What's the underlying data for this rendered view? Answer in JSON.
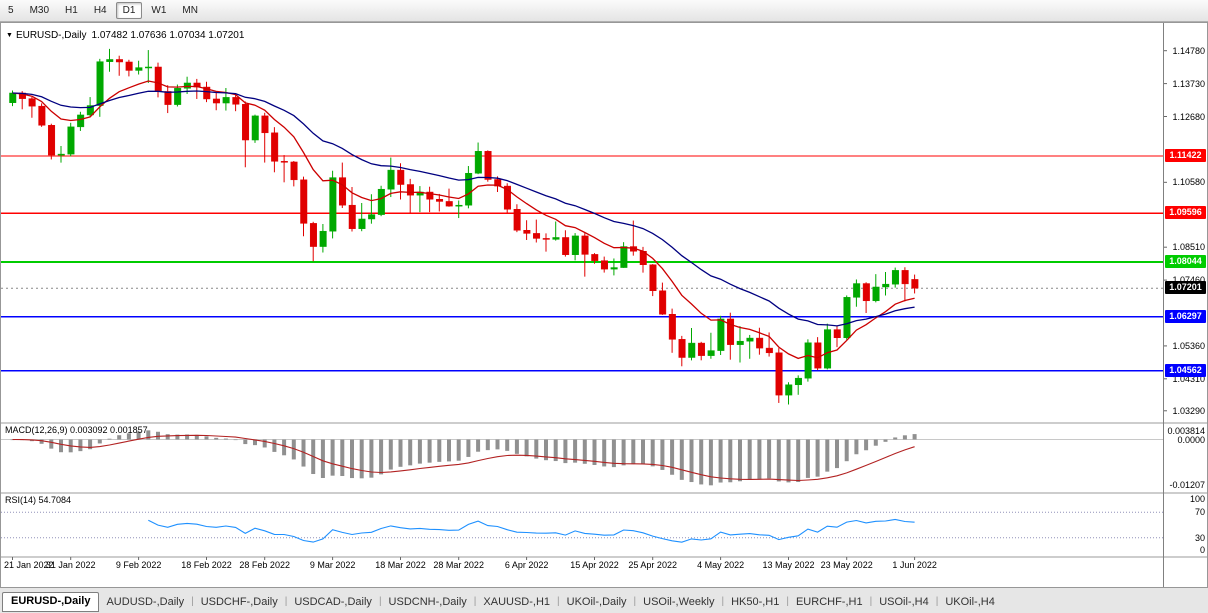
{
  "toolbar": {
    "timeframes": [
      "5",
      "M30",
      "H1",
      "H4",
      "D1",
      "W1",
      "MN"
    ],
    "active": "D1"
  },
  "chart_data": {
    "type": "candlestick",
    "symbol": "EURUSD-,Daily",
    "ohlc": "1.07482 1.07636 1.07034 1.07201",
    "price_range": [
      1.029,
      1.156
    ],
    "price_ticks": [
      "1.14780",
      "1.13730",
      "1.12680",
      "1.10580",
      "1.08510",
      "1.07460",
      "1.05360",
      "1.04310",
      "1.03290"
    ],
    "x_tick_labels": [
      "21 Jan 2022",
      "31 Jan 2022",
      "9 Feb 2022",
      "18 Feb 2022",
      "28 Feb 2022",
      "9 Mar 2022",
      "18 Mar 2022",
      "28 Mar 2022",
      "6 Apr 2022",
      "15 Apr 2022",
      "25 Apr 2022",
      "4 May 2022",
      "13 May 2022",
      "23 May 2022",
      "1 Jun 2022"
    ],
    "x_tick_indices": [
      0,
      6,
      13,
      20,
      26,
      33,
      40,
      46,
      53,
      60,
      66,
      73,
      80,
      86,
      93
    ],
    "colors": {
      "up": "#00a800",
      "down": "#e00000",
      "background": "#ffffff"
    },
    "candles": [
      [
        1.1312,
        1.1351,
        1.1301,
        1.1343
      ],
      [
        1.1343,
        1.1349,
        1.1291,
        1.1325
      ],
      [
        1.1325,
        1.133,
        1.1264,
        1.1301
      ],
      [
        1.1301,
        1.131,
        1.1235,
        1.124
      ],
      [
        1.124,
        1.1245,
        1.1131,
        1.1145
      ],
      [
        1.1145,
        1.1174,
        1.1121,
        1.1148
      ],
      [
        1.1148,
        1.1248,
        1.1141,
        1.1235
      ],
      [
        1.1235,
        1.1283,
        1.1222,
        1.1273
      ],
      [
        1.1273,
        1.133,
        1.1265,
        1.1303
      ],
      [
        1.1303,
        1.1452,
        1.1267,
        1.1443
      ],
      [
        1.1443,
        1.1484,
        1.1411,
        1.145
      ],
      [
        1.145,
        1.1462,
        1.1398,
        1.1442
      ],
      [
        1.1442,
        1.1449,
        1.1396,
        1.1415
      ],
      [
        1.1415,
        1.1446,
        1.1402,
        1.1424
      ],
      [
        1.1424,
        1.148,
        1.1375,
        1.1426
      ],
      [
        1.1426,
        1.144,
        1.1329,
        1.1348
      ],
      [
        1.1348,
        1.1368,
        1.1279,
        1.1306
      ],
      [
        1.1306,
        1.137,
        1.13,
        1.1358
      ],
      [
        1.1358,
        1.1395,
        1.134,
        1.1375
      ],
      [
        1.1375,
        1.1388,
        1.1324,
        1.1362
      ],
      [
        1.1362,
        1.1379,
        1.1314,
        1.1324
      ],
      [
        1.1324,
        1.1347,
        1.1288,
        1.1311
      ],
      [
        1.1311,
        1.1359,
        1.1287,
        1.1329
      ],
      [
        1.1329,
        1.1342,
        1.1285,
        1.1307
      ],
      [
        1.1307,
        1.1316,
        1.1106,
        1.1193
      ],
      [
        1.1193,
        1.1274,
        1.1184,
        1.127
      ],
      [
        1.127,
        1.128,
        1.1121,
        1.1216
      ],
      [
        1.1216,
        1.1234,
        1.109,
        1.1125
      ],
      [
        1.1125,
        1.1145,
        1.1058,
        1.1123
      ],
      [
        1.1123,
        1.1126,
        1.1045,
        1.1066
      ],
      [
        1.1066,
        1.1076,
        1.0886,
        1.0927
      ],
      [
        1.0927,
        1.0932,
        1.0806,
        1.0853
      ],
      [
        1.0853,
        1.0925,
        1.0834,
        1.0902
      ],
      [
        1.0902,
        1.1095,
        1.0879,
        1.1073
      ],
      [
        1.1073,
        1.1121,
        1.0976,
        1.0985
      ],
      [
        1.0985,
        1.1043,
        1.0901,
        1.091
      ],
      [
        1.091,
        1.0992,
        1.0902,
        1.0941
      ],
      [
        1.0941,
        1.102,
        1.0926,
        1.0955
      ],
      [
        1.0955,
        1.1047,
        1.095,
        1.1036
      ],
      [
        1.1036,
        1.1137,
        1.1011,
        1.1097
      ],
      [
        1.1097,
        1.1119,
        1.1003,
        1.1051
      ],
      [
        1.1051,
        1.1069,
        1.096,
        1.1017
      ],
      [
        1.1017,
        1.1046,
        1.0963,
        1.1027
      ],
      [
        1.1027,
        1.1044,
        1.0963,
        1.1004
      ],
      [
        1.1004,
        1.1021,
        1.0965,
        1.0997
      ],
      [
        1.0997,
        1.1038,
        1.098,
        1.0982
      ],
      [
        1.0982,
        1.1,
        1.0944,
        1.0985
      ],
      [
        1.0985,
        1.111,
        1.0975,
        1.1087
      ],
      [
        1.1087,
        1.1185,
        1.1084,
        1.1157
      ],
      [
        1.1157,
        1.116,
        1.106,
        1.1067
      ],
      [
        1.1067,
        1.1077,
        1.1027,
        1.1046
      ],
      [
        1.1046,
        1.1055,
        1.096,
        1.0972
      ],
      [
        1.0972,
        1.0988,
        1.0899,
        1.0905
      ],
      [
        1.0905,
        1.0937,
        1.0874,
        1.0895
      ],
      [
        1.0895,
        1.0939,
        1.0866,
        1.0879
      ],
      [
        1.0879,
        1.0895,
        1.0837,
        1.0876
      ],
      [
        1.0876,
        1.0933,
        1.0872,
        1.0882
      ],
      [
        1.0882,
        1.0905,
        1.0821,
        1.0827
      ],
      [
        1.0827,
        1.0896,
        1.0809,
        1.0887
      ],
      [
        1.0887,
        1.0896,
        1.0757,
        1.0828
      ],
      [
        1.0828,
        1.0832,
        1.0798,
        1.0808
      ],
      [
        1.0808,
        1.0821,
        1.077,
        1.0781
      ],
      [
        1.0781,
        1.0815,
        1.0761,
        1.0786
      ],
      [
        1.0786,
        1.0867,
        1.0785,
        1.0853
      ],
      [
        1.0853,
        1.0936,
        1.0824,
        1.0838
      ],
      [
        1.0838,
        1.0852,
        1.077,
        1.0795
      ],
      [
        1.0795,
        1.0797,
        1.0695,
        1.0712
      ],
      [
        1.0712,
        1.0738,
        1.0635,
        1.0637
      ],
      [
        1.0637,
        1.0655,
        1.0514,
        1.0557
      ],
      [
        1.0557,
        1.0568,
        1.0471,
        1.0499
      ],
      [
        1.0499,
        1.0593,
        1.049,
        1.0545
      ],
      [
        1.0545,
        1.0549,
        1.049,
        1.0505
      ],
      [
        1.0505,
        1.0578,
        1.0495,
        1.0521
      ],
      [
        1.0521,
        1.0632,
        1.0507,
        1.0622
      ],
      [
        1.0622,
        1.0642,
        1.0492,
        1.054
      ],
      [
        1.054,
        1.0599,
        1.0483,
        1.0551
      ],
      [
        1.0551,
        1.0571,
        1.0495,
        1.0561
      ],
      [
        1.0561,
        1.0594,
        1.0508,
        1.0529
      ],
      [
        1.0529,
        1.0579,
        1.0502,
        1.0514
      ],
      [
        1.0514,
        1.0529,
        1.0354,
        1.0379
      ],
      [
        1.0379,
        1.042,
        1.0349,
        1.0412
      ],
      [
        1.0412,
        1.0442,
        1.038,
        1.0433
      ],
      [
        1.0433,
        1.0557,
        1.0422,
        1.0546
      ],
      [
        1.0546,
        1.0564,
        1.0459,
        1.0465
      ],
      [
        1.0465,
        1.0607,
        1.0461,
        1.0588
      ],
      [
        1.0588,
        1.0601,
        1.0532,
        1.0562
      ],
      [
        1.0562,
        1.0697,
        1.0556,
        1.0691
      ],
      [
        1.0691,
        1.0748,
        1.0661,
        1.0735
      ],
      [
        1.0735,
        1.0739,
        1.0641,
        1.068
      ],
      [
        1.068,
        1.0765,
        1.0675,
        1.0724
      ],
      [
        1.0724,
        1.0772,
        1.0697,
        1.0733
      ],
      [
        1.0733,
        1.0786,
        1.0722,
        1.0777
      ],
      [
        1.0777,
        1.0787,
        1.0678,
        1.0734
      ],
      [
        1.07482,
        1.07636,
        1.07034,
        1.07201
      ]
    ],
    "levels": [
      {
        "price": 1.11422,
        "label": "1.11422",
        "color": "#ff0000",
        "width": 1.2
      },
      {
        "price": 1.09596,
        "label": "1.09596",
        "color": "#ff0000",
        "width": 1.2
      },
      {
        "price": 1.08044,
        "label": "1.08044",
        "color": "#00cc00",
        "width": 2
      },
      {
        "price": 1.06297,
        "label": "1.06297",
        "color": "#0000ff",
        "width": 1.5
      },
      {
        "price": 1.04562,
        "label": "1.04562",
        "color": "#0000ff",
        "width": 1.5
      }
    ],
    "current_price": {
      "value": 1.07201,
      "label": "1.07201",
      "color": "#000000"
    },
    "moving_averages": [
      {
        "name": "fast-ma",
        "type": "ema",
        "period": 10,
        "color": "#cc0000"
      },
      {
        "name": "slow-ma",
        "type": "ema",
        "period": 25,
        "color": "#000080"
      }
    ],
    "macd": {
      "label": "MACD(12,26,9) 0.003092 0.001857",
      "params": [
        12,
        26,
        9
      ],
      "axis_labels": [
        "0.003814",
        "0.0000",
        "-0.01207"
      ],
      "histogram_color": "#909090",
      "signal_color": "#b22222"
    },
    "rsi": {
      "label": "RSI(14) 54.7084",
      "period": 14,
      "value": 54.7084,
      "axis_labels": [
        "100",
        "70",
        "30",
        "0"
      ],
      "level_lines": [
        70,
        30
      ],
      "color": "#1e90ff"
    }
  },
  "tabs": {
    "items": [
      "EURUSD-,Daily",
      "AUDUSD-,Daily",
      "USDCHF-,Daily",
      "USDCAD-,Daily",
      "USDCNH-,Daily",
      "XAUUSD-,H1",
      "UKOil-,Daily",
      "USOil-,Weekly",
      "HK50-,H1",
      "EURCHF-,H1",
      "USOil-,H4",
      "UKOil-,H4"
    ],
    "active": "EURUSD-,Daily"
  }
}
